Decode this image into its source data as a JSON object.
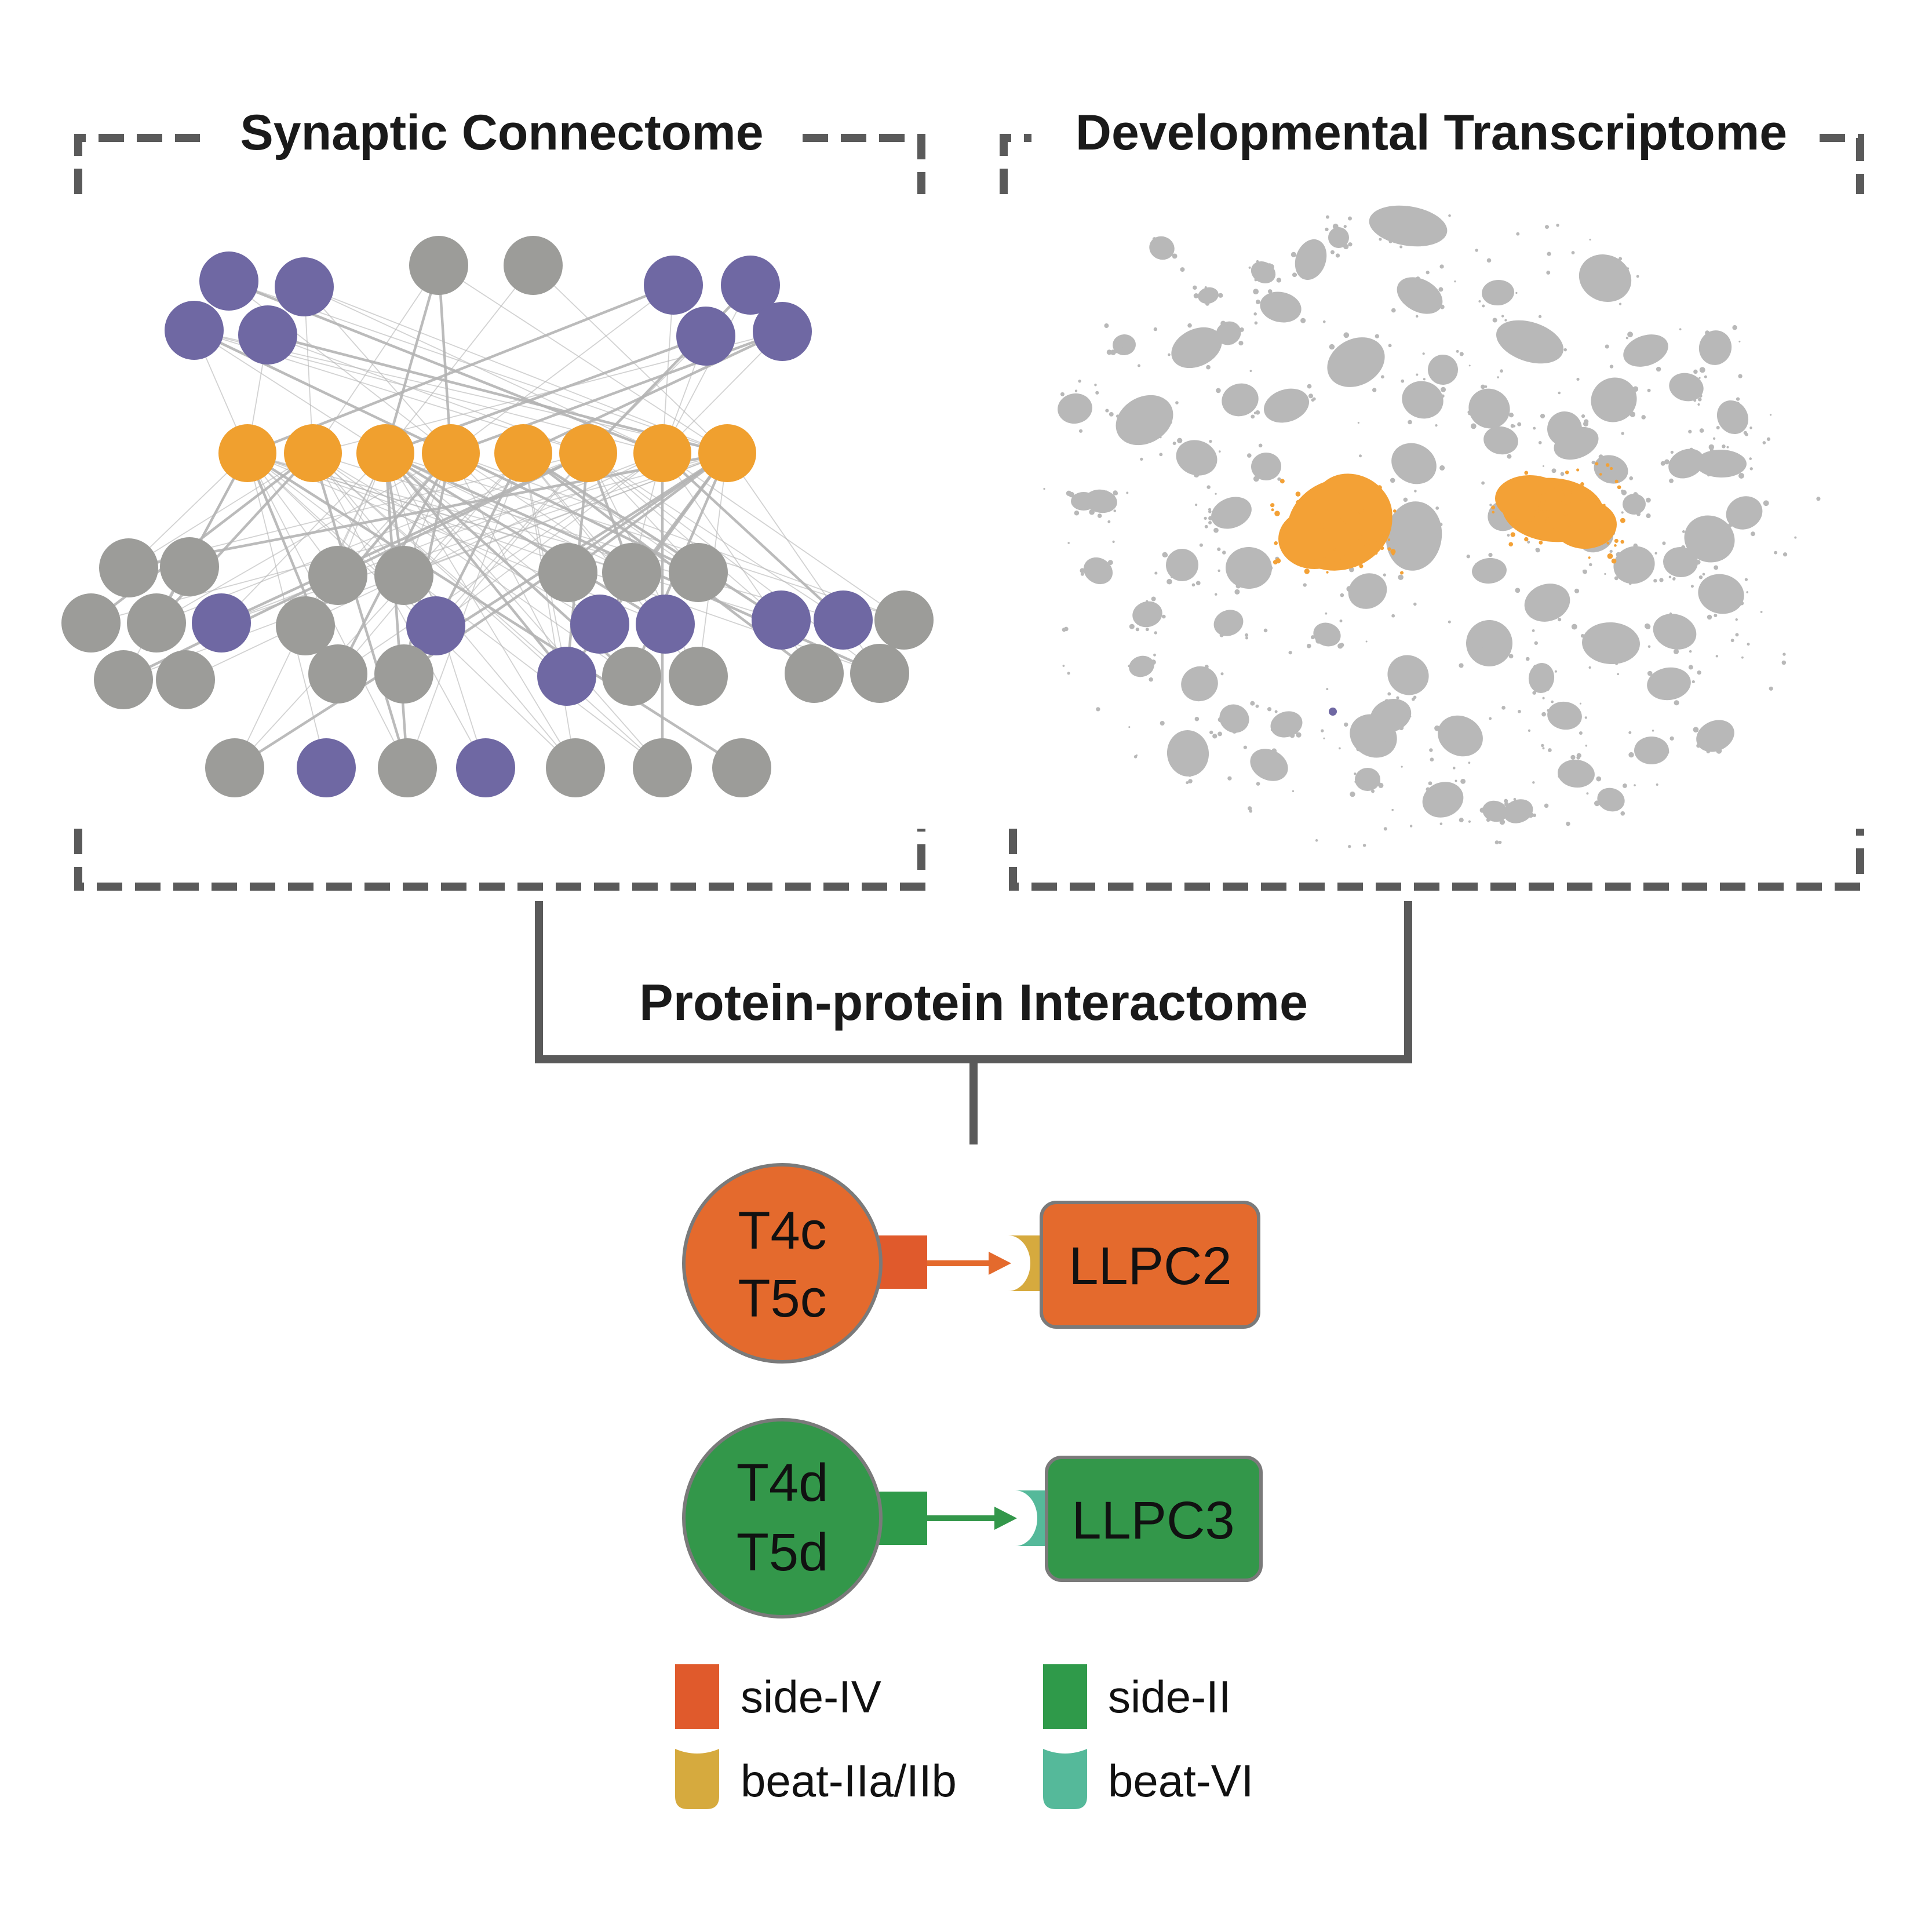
{
  "colors": {
    "purple": "#6f68a3",
    "gray_node": "#9c9c99",
    "orange_node": "#f0a02f",
    "bracket": "#5a5a5a",
    "edge": "#b4b4b4",
    "umap_gray": "#b8b8b8",
    "umap_orange": "#f3a136",
    "t4c_fill": "#e46a2d",
    "t4d_fill": "#33974a",
    "side_iv": "#e05a2c",
    "side_ii": "#2f9a4a",
    "beat_iia": "#d6aa3e",
    "beat_vi": "#55b99a"
  },
  "panels": {
    "connectome_title": "Synaptic Connectome",
    "transcriptome_title": "Developmental Transcriptome",
    "interactome_title": "Protein-protein Interactome"
  },
  "pairs": [
    {
      "cell_line1": "T4c",
      "cell_line2": "T5c",
      "partner": "LLPC2",
      "fill_key": "t4c_fill",
      "ligand_key": "side_iv",
      "receptor_key": "beat_iia"
    },
    {
      "cell_line1": "T4d",
      "cell_line2": "T5d",
      "partner": "LLPC3",
      "fill_key": "t4d_fill",
      "ligand_key": "side_ii",
      "receptor_key": "beat_vi"
    }
  ],
  "legend": [
    {
      "label": "side-IV",
      "shape": "square",
      "color_key": "side_iv"
    },
    {
      "label": "side-II",
      "shape": "square",
      "color_key": "side_ii"
    },
    {
      "label": "beat-IIa/IIb",
      "shape": "cup",
      "color_key": "beat_iia"
    },
    {
      "label": "beat-VI",
      "shape": "cup",
      "color_key": "beat_vi"
    }
  ]
}
